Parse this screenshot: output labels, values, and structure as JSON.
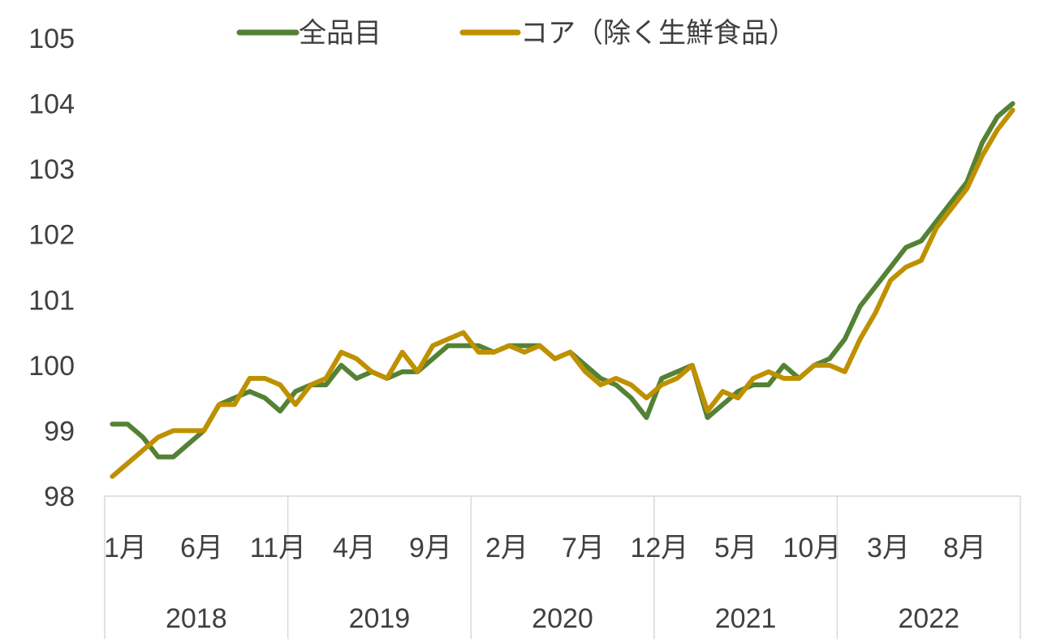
{
  "chart_data": {
    "type": "line",
    "ylim": [
      98,
      105
    ],
    "yticks": [
      98,
      99,
      100,
      101,
      102,
      103,
      104,
      105
    ],
    "x_tick_labels": [
      {
        "index": 0,
        "label": "1月"
      },
      {
        "index": 5,
        "label": "6月"
      },
      {
        "index": 10,
        "label": "11月"
      },
      {
        "index": 15,
        "label": "4月"
      },
      {
        "index": 20,
        "label": "9月"
      },
      {
        "index": 25,
        "label": "2月"
      },
      {
        "index": 30,
        "label": "7月"
      },
      {
        "index": 35,
        "label": "12月"
      },
      {
        "index": 40,
        "label": "5月"
      },
      {
        "index": 45,
        "label": "10月"
      },
      {
        "index": 50,
        "label": "3月"
      },
      {
        "index": 55,
        "label": "8月"
      }
    ],
    "years": [
      {
        "label": "2018",
        "start": 0,
        "end": 12
      },
      {
        "label": "2019",
        "start": 12,
        "end": 24
      },
      {
        "label": "2020",
        "start": 24,
        "end": 36
      },
      {
        "label": "2021",
        "start": 36,
        "end": 48
      },
      {
        "label": "2022",
        "start": 48,
        "end": 60
      }
    ],
    "legend_position": "top",
    "series": [
      {
        "name": "全品目",
        "color": "#548235",
        "values": [
          99.1,
          99.1,
          98.9,
          98.6,
          98.6,
          98.8,
          99.0,
          99.4,
          99.5,
          99.6,
          99.5,
          99.3,
          99.6,
          99.7,
          99.7,
          100.0,
          99.8,
          99.9,
          99.8,
          99.9,
          99.9,
          100.1,
          100.3,
          100.3,
          100.3,
          100.2,
          100.3,
          100.3,
          100.3,
          100.1,
          100.2,
          100.0,
          99.8,
          99.7,
          99.5,
          99.2,
          99.8,
          99.9,
          100.0,
          99.2,
          99.4,
          99.6,
          99.7,
          99.7,
          100.0,
          99.8,
          100.0,
          100.1,
          100.4,
          100.9,
          101.2,
          101.5,
          101.8,
          101.9,
          102.2,
          102.5,
          102.8,
          103.4,
          103.8,
          104.0
        ]
      },
      {
        "name": "コア（除く生鮮食品）",
        "color": "#BF9000",
        "values": [
          98.3,
          98.5,
          98.7,
          98.9,
          99.0,
          99.0,
          99.0,
          99.4,
          99.4,
          99.8,
          99.8,
          99.7,
          99.4,
          99.7,
          99.8,
          100.2,
          100.1,
          99.9,
          99.8,
          100.2,
          99.9,
          100.3,
          100.4,
          100.5,
          100.2,
          100.2,
          100.3,
          100.2,
          100.3,
          100.1,
          100.2,
          99.9,
          99.7,
          99.8,
          99.7,
          99.5,
          99.7,
          99.8,
          100.0,
          99.3,
          99.6,
          99.5,
          99.8,
          99.9,
          99.8,
          99.8,
          100.0,
          100.0,
          99.9,
          100.4,
          100.8,
          101.3,
          101.5,
          101.6,
          102.1,
          102.4,
          102.7,
          103.2,
          103.6,
          103.9
        ]
      }
    ]
  }
}
